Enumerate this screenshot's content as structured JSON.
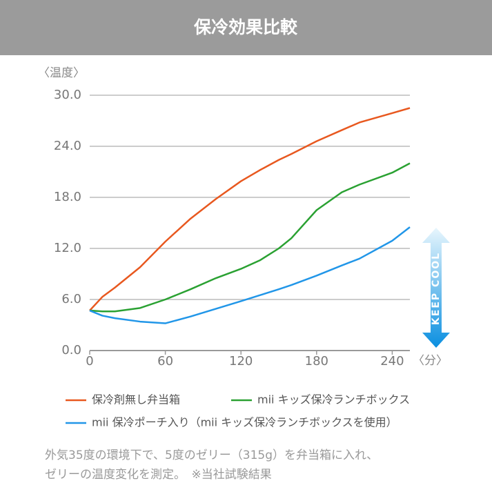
{
  "chart_data": {
    "type": "line",
    "title": "保冷効果比較",
    "y_label": "〈温度〉",
    "x_label": "〈分〉",
    "x": [
      0,
      10,
      20,
      40,
      60,
      80,
      100,
      120,
      135,
      150,
      160,
      180,
      200,
      214,
      240,
      254
    ],
    "series": [
      {
        "name": "保冷剤無し弁当箱",
        "color": "#e8581f",
        "values": [
          4.7,
          6.3,
          7.4,
          9.8,
          12.8,
          15.5,
          17.8,
          19.9,
          21.2,
          22.4,
          23.1,
          24.6,
          25.9,
          26.8,
          27.9,
          28.5
        ]
      },
      {
        "name": "mii キッズ保冷ランチボックス",
        "color": "#2aa132",
        "values": [
          4.7,
          4.6,
          4.6,
          5.0,
          6.0,
          7.2,
          8.5,
          9.6,
          10.6,
          12.0,
          13.2,
          16.5,
          18.6,
          19.5,
          20.9,
          22.0
        ]
      },
      {
        "name": "mii 保冷ポーチ入り（mii キッズ保冷ランチボックスを使用）",
        "color": "#2196e8",
        "values": [
          4.7,
          4.1,
          3.8,
          3.4,
          3.2,
          4.0,
          4.9,
          5.8,
          6.5,
          7.2,
          7.7,
          8.8,
          10.0,
          10.8,
          12.9,
          14.5
        ]
      }
    ],
    "xlim": [
      0,
      254
    ],
    "ylim": [
      0,
      30
    ],
    "xticks": [
      0,
      60,
      120,
      180,
      240
    ],
    "yticks": [
      {
        "value": 0,
        "label": "0.0"
      },
      {
        "value": 6,
        "label": "6.0"
      },
      {
        "value": 12,
        "label": "12.0"
      },
      {
        "value": 18,
        "label": "18.0"
      },
      {
        "value": 24,
        "label": "24.0"
      },
      {
        "value": 30,
        "label": "30.0"
      }
    ],
    "grid": true,
    "side_label": "KEEP COOL",
    "note_lines": [
      "外気35度の環境下で、5度のゼリー（315g）を弁当箱に入れ、",
      "ゼリーの温度変化を測定。　※当社試験結果"
    ]
  }
}
